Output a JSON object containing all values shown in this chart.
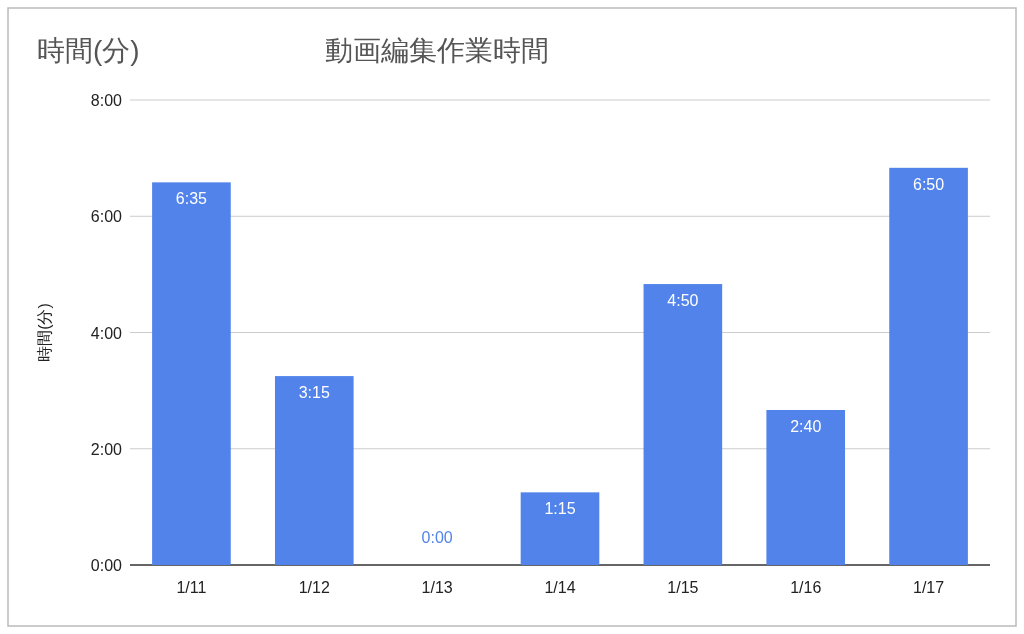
{
  "chart_data": {
    "type": "bar",
    "title": "動画編集作業時間",
    "ylabel": "時間(分)",
    "annotations": [
      "時間(分)"
    ],
    "categories": [
      "1/11",
      "1/12",
      "1/13",
      "1/14",
      "1/15",
      "1/16",
      "1/17"
    ],
    "values": [
      6.5833,
      3.25,
      0,
      1.25,
      4.8333,
      2.6667,
      6.8333
    ],
    "value_labels": [
      "6:35",
      "3:15",
      "0:00",
      "1:15",
      "4:50",
      "2:40",
      "6:50"
    ],
    "color": "#5183eb",
    "ylim": [
      0,
      8
    ],
    "yticks": [
      {
        "value": 0,
        "label": "0:00"
      },
      {
        "value": 2,
        "label": "2:00"
      },
      {
        "value": 4,
        "label": "4:00"
      },
      {
        "value": 6,
        "label": "6:00"
      },
      {
        "value": 8,
        "label": "8:00"
      }
    ],
    "grid": "y"
  }
}
